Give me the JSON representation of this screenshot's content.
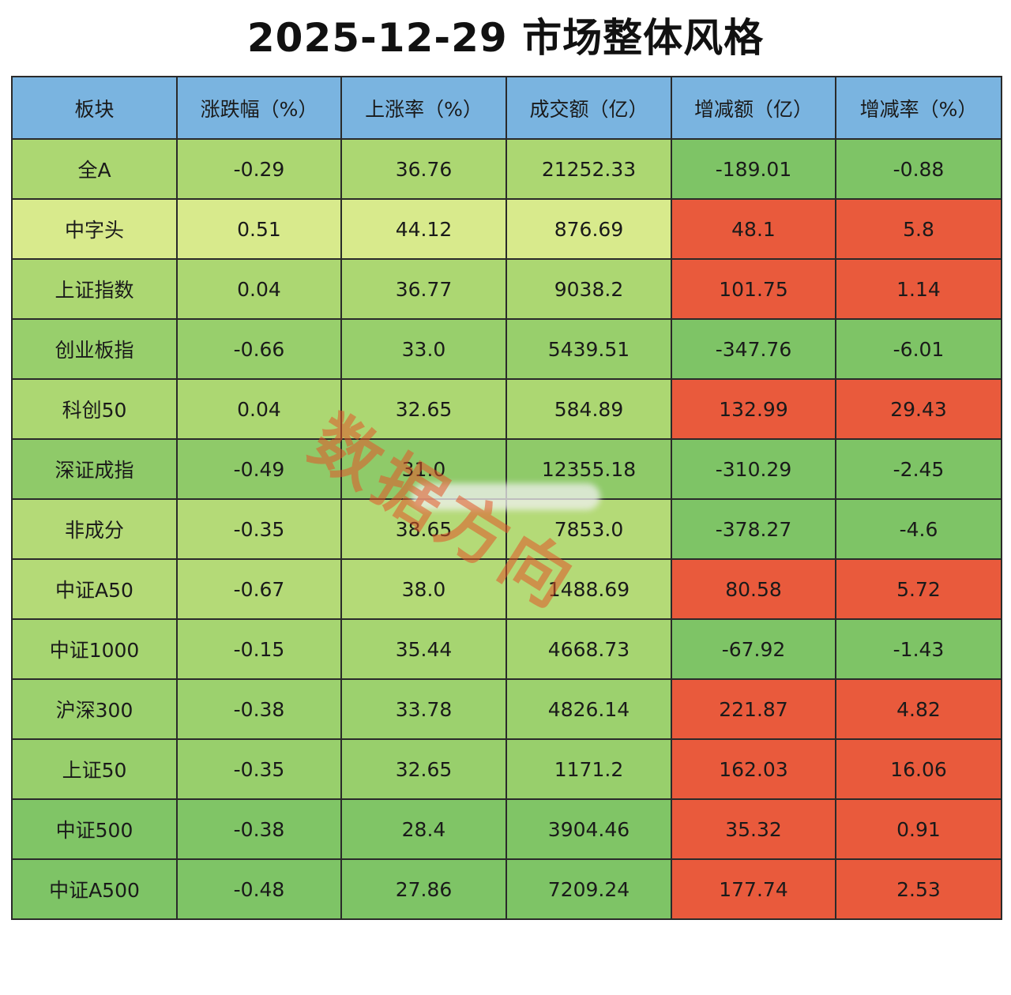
{
  "title": "2025-12-29  市场整体风格",
  "colors": {
    "header": "#7ab4e0",
    "green_light": "#d8ea8c",
    "green_mid": "#acd772",
    "green_dark": "#7ec466",
    "red": "#e95a3c"
  },
  "headers": [
    "板块",
    "涨跌幅（%）",
    "上涨率（%）",
    "成交额（亿）",
    "增减额（亿）",
    "增减率（%）"
  ],
  "rows": [
    {
      "cells": [
        "全A",
        "-0.29",
        "36.76",
        "21252.33",
        "-189.01",
        "-0.88"
      ],
      "colors": [
        "#acd772",
        "#acd772",
        "#acd772",
        "#acd772",
        "#7ec466",
        "#7ec466"
      ]
    },
    {
      "cells": [
        "中字头",
        "0.51",
        "44.12",
        "876.69",
        "48.1",
        "5.8"
      ],
      "colors": [
        "#d8ea8c",
        "#d8ea8c",
        "#d8ea8c",
        "#d8ea8c",
        "#e95a3c",
        "#e95a3c"
      ]
    },
    {
      "cells": [
        "上证指数",
        "0.04",
        "36.77",
        "9038.2",
        "101.75",
        "1.14"
      ],
      "colors": [
        "#acd772",
        "#acd772",
        "#acd772",
        "#acd772",
        "#e95a3c",
        "#e95a3c"
      ]
    },
    {
      "cells": [
        "创业板指",
        "-0.66",
        "33.0",
        "5439.51",
        "-347.76",
        "-6.01"
      ],
      "colors": [
        "#98cf6c",
        "#98cf6c",
        "#98cf6c",
        "#98cf6c",
        "#7ec466",
        "#7ec466"
      ]
    },
    {
      "cells": [
        "科创50",
        "0.04",
        "32.65",
        "584.89",
        "132.99",
        "29.43"
      ],
      "colors": [
        "#acd772",
        "#acd772",
        "#acd772",
        "#acd772",
        "#e95a3c",
        "#e95a3c"
      ]
    },
    {
      "cells": [
        "深证成指",
        "-0.49",
        "31.0",
        "12355.18",
        "-310.29",
        "-2.45"
      ],
      "colors": [
        "#8fca69",
        "#8fca69",
        "#8fca69",
        "#8fca69",
        "#7ec466",
        "#7ec466"
      ]
    },
    {
      "cells": [
        "非成分",
        "-0.35",
        "38.65",
        "7853.0",
        "-378.27",
        "-4.6"
      ],
      "colors": [
        "#b4da77",
        "#b4da77",
        "#b4da77",
        "#b4da77",
        "#7ec466",
        "#7ec466"
      ]
    },
    {
      "cells": [
        "中证A50",
        "-0.67",
        "38.0",
        "1488.69",
        "80.58",
        "5.72"
      ],
      "colors": [
        "#b4da77",
        "#b4da77",
        "#b4da77",
        "#b4da77",
        "#e95a3c",
        "#e95a3c"
      ]
    },
    {
      "cells": [
        "中证1000",
        "-0.15",
        "35.44",
        "4668.73",
        "-67.92",
        "-1.43"
      ],
      "colors": [
        "#a6d571",
        "#a6d571",
        "#a6d571",
        "#a6d571",
        "#7ec466",
        "#7ec466"
      ]
    },
    {
      "cells": [
        "沪深300",
        "-0.38",
        "33.78",
        "4826.14",
        "221.87",
        "4.82"
      ],
      "colors": [
        "#9cd16e",
        "#9cd16e",
        "#9cd16e",
        "#9cd16e",
        "#e95a3c",
        "#e95a3c"
      ]
    },
    {
      "cells": [
        "上证50",
        "-0.35",
        "32.65",
        "1171.2",
        "162.03",
        "16.06"
      ],
      "colors": [
        "#98cf6c",
        "#98cf6c",
        "#98cf6c",
        "#98cf6c",
        "#e95a3c",
        "#e95a3c"
      ]
    },
    {
      "cells": [
        "中证500",
        "-0.38",
        "28.4",
        "3904.46",
        "35.32",
        "0.91"
      ],
      "colors": [
        "#80c566",
        "#80c566",
        "#80c566",
        "#80c566",
        "#e95a3c",
        "#e95a3c"
      ]
    },
    {
      "cells": [
        "中证A500",
        "-0.48",
        "27.86",
        "7209.24",
        "177.74",
        "2.53"
      ],
      "colors": [
        "#7ec466",
        "#7ec466",
        "#7ec466",
        "#7ec466",
        "#e95a3c",
        "#e95a3c"
      ]
    }
  ],
  "watermark": "数据方向"
}
